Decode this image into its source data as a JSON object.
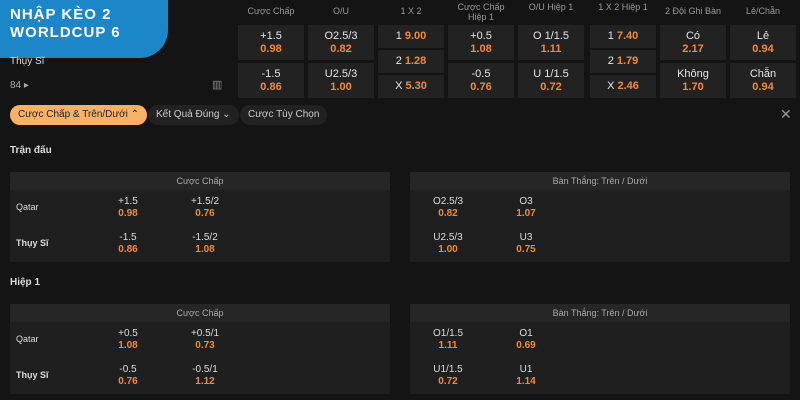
{
  "logo": {
    "line1": "NHẬP KÈO 2",
    "line2": "WORLDCUP 6"
  },
  "match": {
    "team2": "Thụy Sĩ",
    "more_count": "84"
  },
  "columns": [
    "Cược Chấp",
    "O/U",
    "1 X 2",
    "Cược Chấp Hiệp 1",
    "O/U Hiệp 1",
    "1 X 2 Hiệp 1",
    "2 Đội Ghi Bàn",
    "Lẻ/Chẵn"
  ],
  "top": {
    "hdp": [
      {
        "line": "+1.5",
        "odd": "0.98"
      },
      {
        "line": "-1.5",
        "odd": "0.86"
      }
    ],
    "ou": [
      {
        "line": "O2.5/3",
        "odd": "0.82"
      },
      {
        "line": "U2.5/3",
        "odd": "1.00"
      }
    ],
    "x12": [
      {
        "line": "1",
        "odd": "9.00"
      },
      {
        "line": "2",
        "odd": "1.28"
      },
      {
        "line": "X",
        "odd": "5.30"
      }
    ],
    "hdp_h1": [
      {
        "line": "+0.5",
        "odd": "1.08"
      },
      {
        "line": "-0.5",
        "odd": "0.76"
      }
    ],
    "ou_h1": [
      {
        "line": "O 1/1.5",
        "odd": "1.11"
      },
      {
        "line": "U 1/1.5",
        "odd": "0.72"
      }
    ],
    "x12_h1": [
      {
        "line": "1",
        "odd": "7.40"
      },
      {
        "line": "2",
        "odd": "1.79"
      },
      {
        "line": "X",
        "odd": "2.46"
      }
    ],
    "btts": [
      {
        "line": "Có",
        "odd": "2.17"
      },
      {
        "line": "Không",
        "odd": "1.70"
      }
    ],
    "oe": [
      {
        "line": "Lẻ",
        "odd": "0.94"
      },
      {
        "line": "Chẵn",
        "odd": "0.94"
      }
    ]
  },
  "tabs": [
    {
      "label": "Cược Chấp & Trên/Dưới",
      "active": true
    },
    {
      "label": "Kết Quả Đúng"
    },
    {
      "label": "Cược Tùy Chọn"
    }
  ],
  "sections": [
    {
      "title": "Trận đấu",
      "left_header": "Cược Chấp",
      "right_header": "Bàn Thắng: Trên / Dưới",
      "rows": [
        {
          "team": "Qatar",
          "l": [
            [
              "+1.5",
              "0.98"
            ],
            [
              "+1.5/2",
              "0.76"
            ]
          ],
          "r": [
            [
              "O2.5/3",
              "0.82"
            ],
            [
              "O3",
              "1.07"
            ]
          ]
        },
        {
          "team": "Thụy Sĩ",
          "l": [
            [
              "-1.5",
              "0.86"
            ],
            [
              "-1.5/2",
              "1.08"
            ]
          ],
          "r": [
            [
              "U2.5/3",
              "1.00"
            ],
            [
              "U3",
              "0.75"
            ]
          ]
        }
      ]
    },
    {
      "title": "Hiệp 1",
      "left_header": "Cược Chấp",
      "right_header": "Bàn Thắng: Trên / Dưới",
      "rows": [
        {
          "team": "Qatar",
          "l": [
            [
              "+0.5",
              "1.08"
            ],
            [
              "+0.5/1",
              "0.73"
            ]
          ],
          "r": [
            [
              "O1/1.5",
              "1.11"
            ],
            [
              "O1",
              "0.69"
            ]
          ]
        },
        {
          "team": "Thụy Sĩ",
          "l": [
            [
              "-0.5",
              "0.76"
            ],
            [
              "-0.5/1",
              "1.12"
            ]
          ],
          "r": [
            [
              "U1/1.5",
              "0.72"
            ],
            [
              "U1",
              "1.14"
            ]
          ]
        }
      ]
    }
  ],
  "colors": {
    "accent": "#f7b267",
    "odds": "#f08a3c",
    "logo_bg": "#1b86c8"
  }
}
